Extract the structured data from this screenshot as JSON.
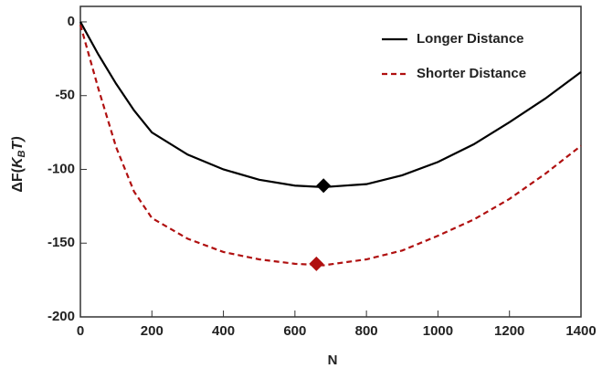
{
  "chart_data": {
    "type": "line",
    "x_label": "N",
    "y_label_parts": [
      "ΔF(",
      "K",
      "B",
      "T)"
    ],
    "x": [
      0,
      50,
      100,
      150,
      200,
      300,
      400,
      500,
      600,
      680,
      800,
      900,
      1000,
      1100,
      1200,
      1300,
      1400
    ],
    "series": [
      {
        "name": "Longer Distance",
        "color": "#000000",
        "dashed": false,
        "values": [
          0,
          -22,
          -42,
          -60,
          -75,
          -90,
          -100,
          -107,
          -111,
          -112,
          -110,
          -104,
          -95,
          -83,
          -68,
          -52,
          -34
        ],
        "marker": {
          "x": 680,
          "y": -111
        }
      },
      {
        "name": "Shorter Distance",
        "color": "#b01010",
        "dashed": true,
        "values": [
          -2,
          -45,
          -85,
          -115,
          -133,
          -147,
          -156,
          -161,
          -164,
          -165,
          -161,
          -155,
          -145,
          -134,
          -120,
          -103,
          -84
        ],
        "marker": {
          "x": 660,
          "y": -164
        }
      }
    ],
    "xlim": [
      0,
      1400
    ],
    "xticks": [
      0,
      200,
      400,
      600,
      800,
      1000,
      1200,
      1400
    ],
    "ylim": [
      -200,
      10.5
    ],
    "yticks": [
      0,
      -50,
      -100,
      -150,
      -200
    ],
    "legend": "top-right"
  }
}
